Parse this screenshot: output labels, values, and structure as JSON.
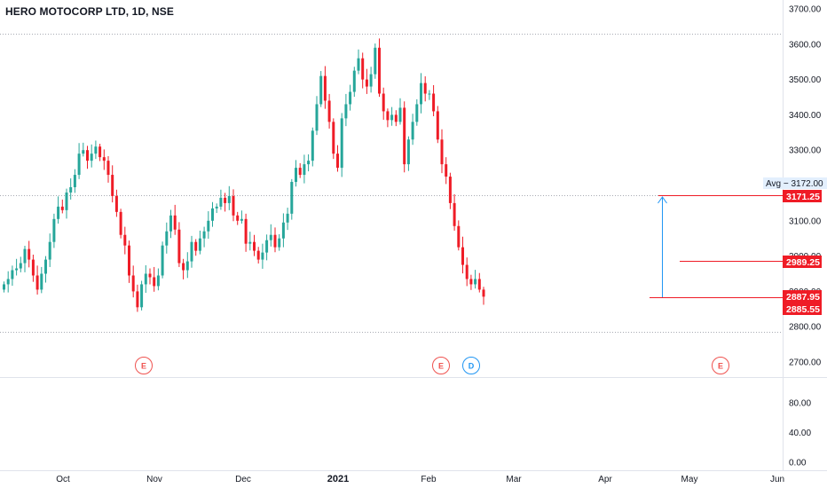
{
  "header": {
    "title": "HERO MOTOCORP LTD, 1D, NSE"
  },
  "colors": {
    "up": "#26a69a",
    "down": "#ef1c26",
    "grid": "#f0f3fa",
    "measure": "#2196f3",
    "event_e": "#ef5350",
    "event_d": "#2196f3"
  },
  "chart_data": {
    "type": "candlestick",
    "title": "HERO MOTOCORP LTD, 1D, NSE",
    "y_price_ticks": [
      "2700.00",
      "2800.00",
      "2900.00",
      "3000.00",
      "3100.00",
      "3200.00",
      "3300.00",
      "3400.00",
      "3500.00",
      "3600.00",
      "3700.00"
    ],
    "y_volume_ticks": [
      "0.00",
      "40.00",
      "80.00"
    ],
    "x_tick_labels": [
      "Oct",
      "Nov",
      "Dec",
      "2021",
      "Feb",
      "Mar",
      "Apr",
      "May",
      "Jun"
    ],
    "price_range": [
      2620,
      3712
    ],
    "volume_range": [
      0,
      100
    ],
    "ohlc_approx_close": [
      2920,
      2935,
      2960,
      2965,
      2980,
      3020,
      2990,
      2945,
      2905,
      2950,
      2990,
      3040,
      3105,
      3140,
      3130,
      3180,
      3195,
      3230,
      3290,
      3300,
      3270,
      3290,
      3310,
      3280,
      3270,
      3230,
      3170,
      3125,
      3060,
      3030,
      2945,
      2900,
      2855,
      2920,
      2950,
      2940,
      2915,
      2945,
      3030,
      3070,
      3115,
      3075,
      2980,
      2960,
      2985,
      3040,
      3015,
      3050,
      3070,
      3100,
      3135,
      3140,
      3165,
      3150,
      3170,
      3115,
      3100,
      3105,
      3035,
      3040,
      3015,
      2990,
      3010,
      3045,
      3060,
      3025,
      3050,
      3095,
      3120,
      3210,
      3250,
      3230,
      3260,
      3270,
      3355,
      3430,
      3510,
      3440,
      3380,
      3290,
      3250,
      3390,
      3430,
      3465,
      3525,
      3560,
      3500,
      3480,
      3515,
      3590,
      3460,
      3410,
      3385,
      3400,
      3380,
      3420,
      3260,
      3330,
      3380,
      3430,
      3490,
      3460,
      3460,
      3410,
      3330,
      3260,
      3225,
      3150,
      3085,
      3025,
      2975,
      2935,
      2920,
      2935,
      2905,
      2885
    ],
    "last_prices": {
      "last": "2885.55",
      "last_close": "2887.95"
    },
    "avg_label": "Avg − 3172.00",
    "price_tags": [
      "3171.25",
      "2989.25",
      "2887.95",
      "2885.55"
    ],
    "events": [
      {
        "label": "E",
        "date": "Oct"
      },
      {
        "label": "E",
        "date": "Feb"
      },
      {
        "label": "D",
        "date": "Feb"
      },
      {
        "label": "E",
        "date": "May"
      }
    ],
    "grid": false,
    "legend": "none"
  }
}
